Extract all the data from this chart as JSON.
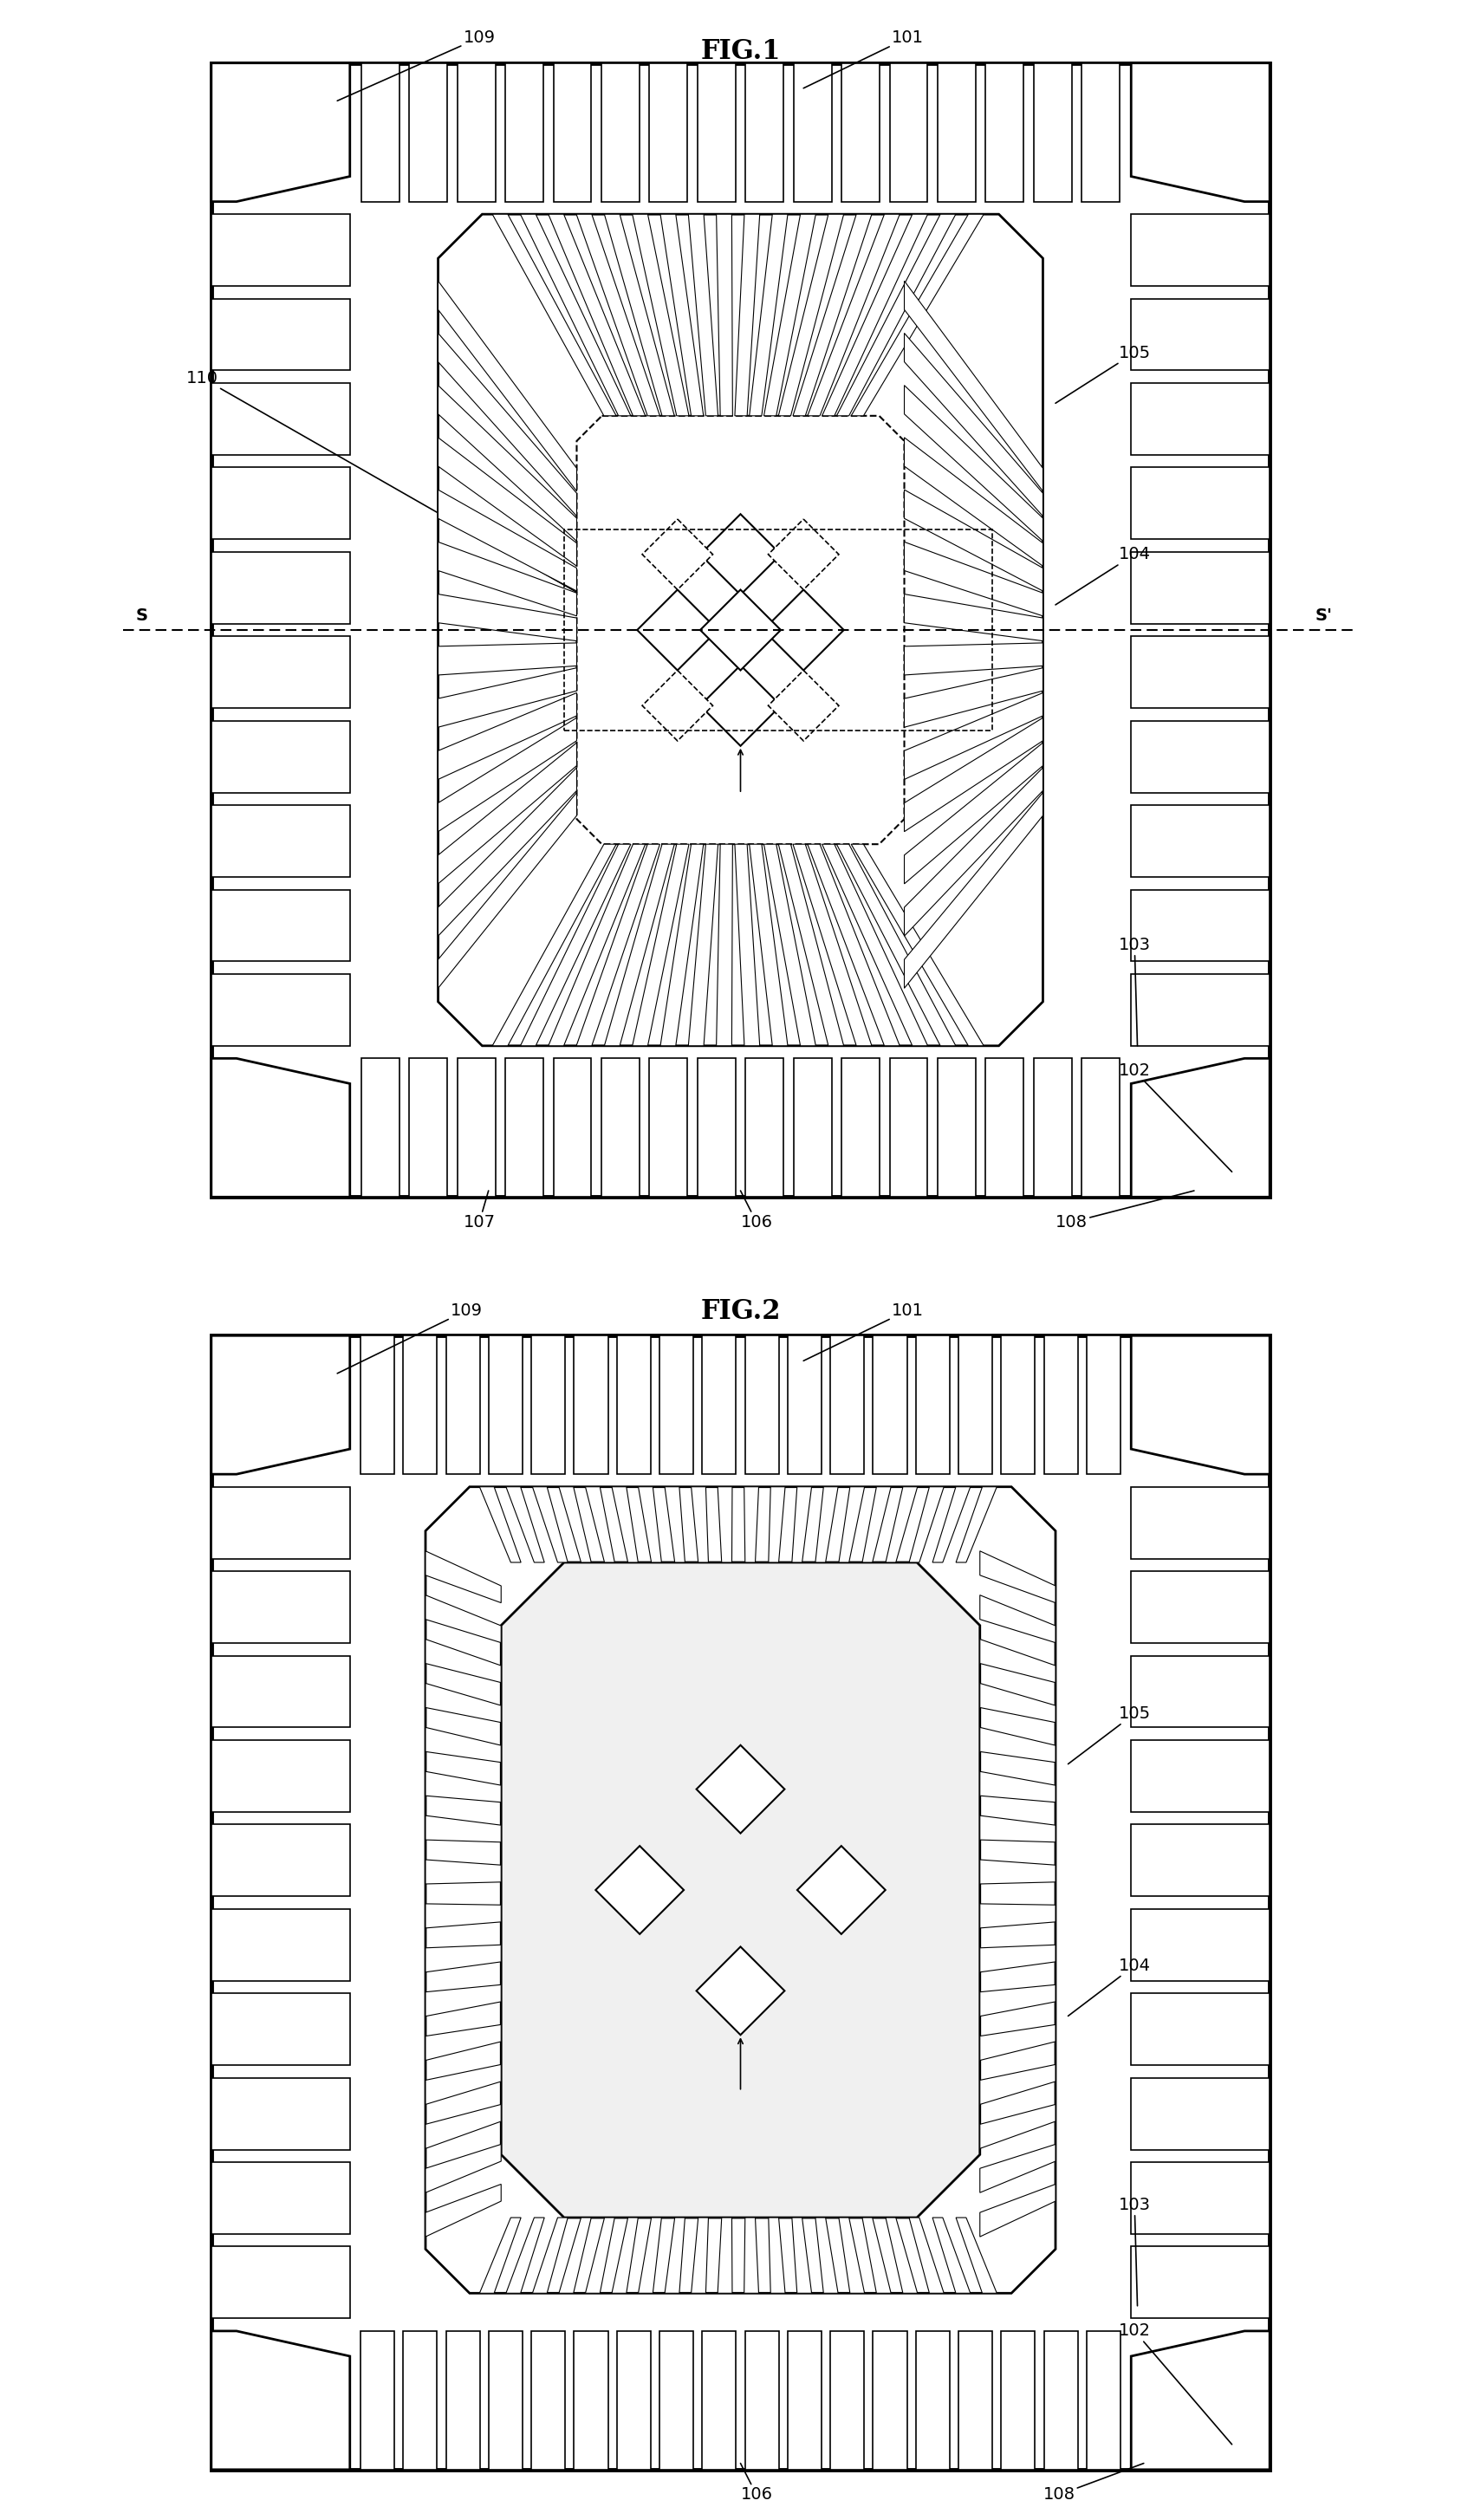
{
  "fig1_title": "FIG.1",
  "fig2_title": "FIG.2",
  "bg_color": "#ffffff",
  "line_color": "#000000"
}
